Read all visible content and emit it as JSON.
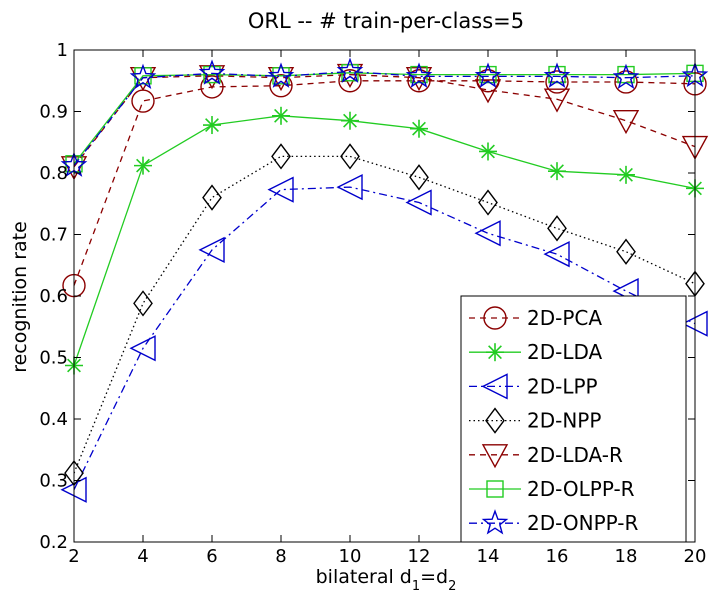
{
  "chart_data": {
    "type": "line",
    "title": "ORL -- # train-per-class=5",
    "xlabel": {
      "main": "bilateral d",
      "sub1": "1",
      "mid": "=d",
      "sub2": "2"
    },
    "ylabel": "recognition rate",
    "xlim": [
      2,
      20
    ],
    "ylim": [
      0.2,
      1.0
    ],
    "xticks": [
      2,
      4,
      6,
      8,
      10,
      12,
      14,
      16,
      18,
      20
    ],
    "yticks": [
      0.2,
      0.3,
      0.4,
      0.5,
      0.6,
      0.7,
      0.8,
      0.9,
      1.0
    ],
    "ytick_labels": [
      "0.2",
      "0.3",
      "0.4",
      "0.5",
      "0.6",
      "0.7",
      "0.8",
      "0.9",
      "1"
    ],
    "grid": false,
    "legend_position": "bottom-right",
    "x": [
      2,
      4,
      6,
      8,
      10,
      12,
      14,
      16,
      18,
      20
    ],
    "series": [
      {
        "name": "2D-PCA",
        "color": "#8b0000",
        "dash": "6,5",
        "marker": "circle",
        "values": [
          0.617,
          0.917,
          0.94,
          0.942,
          0.95,
          0.95,
          0.95,
          0.948,
          0.948,
          0.945
        ]
      },
      {
        "name": "2D-LDA",
        "color": "#22cc22",
        "dash": "",
        "marker": "asterisk",
        "values": [
          0.487,
          0.812,
          0.878,
          0.893,
          0.885,
          0.872,
          0.835,
          0.803,
          0.797,
          0.775
        ]
      },
      {
        "name": "2D-LPP",
        "color": "#0000cc",
        "dash": "8,4,2,4",
        "marker": "triangle-left",
        "values": [
          0.285,
          0.515,
          0.675,
          0.773,
          0.777,
          0.752,
          0.702,
          0.668,
          0.608,
          0.555
        ]
      },
      {
        "name": "2D-NPP",
        "color": "#000000",
        "dash": "1.5,3",
        "marker": "diamond",
        "values": [
          0.312,
          0.588,
          0.76,
          0.827,
          0.827,
          0.793,
          0.752,
          0.71,
          0.672,
          0.62
        ]
      },
      {
        "name": "2D-LDA-R",
        "color": "#8b0000",
        "dash": "6,5",
        "marker": "triangle-down",
        "values": [
          0.81,
          0.955,
          0.958,
          0.955,
          0.96,
          0.955,
          0.935,
          0.92,
          0.885,
          0.843
        ]
      },
      {
        "name": "2D-OLPP-R",
        "color": "#22cc22",
        "dash": "",
        "marker": "square",
        "values": [
          0.815,
          0.958,
          0.96,
          0.958,
          0.963,
          0.96,
          0.96,
          0.96,
          0.96,
          0.962
        ]
      },
      {
        "name": "2D-ONPP-R",
        "color": "#0000cc",
        "dash": "8,4,2,4",
        "marker": "star",
        "values": [
          0.812,
          0.955,
          0.962,
          0.957,
          0.965,
          0.957,
          0.957,
          0.957,
          0.955,
          0.958
        ]
      }
    ]
  }
}
